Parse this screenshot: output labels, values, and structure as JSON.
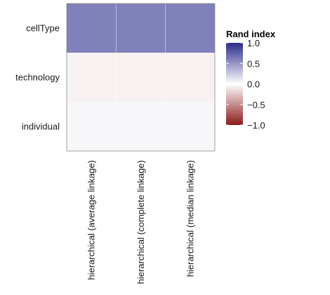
{
  "chart_data": {
    "type": "heatmap",
    "x_categories": [
      "hierarchical (average linkage)",
      "hierarchical (complete linkage)",
      "hierarchical (median linkage)"
    ],
    "y_categories": [
      "cellType",
      "technology",
      "individual"
    ],
    "values": [
      [
        0.6,
        0.6,
        0.6
      ],
      [
        -0.06,
        -0.06,
        -0.06
      ],
      [
        0.04,
        0.04,
        0.04
      ]
    ],
    "title": "",
    "xlabel": "",
    "ylabel": "",
    "legend": {
      "title": "Rand index",
      "range": [
        -1.0,
        1.0
      ],
      "ticks": [
        "1.0",
        "0.5",
        "0.0",
        "−0.5",
        "−1.0"
      ],
      "tick_values": [
        1.0,
        0.5,
        0.0,
        -0.5,
        -1.0
      ],
      "placement": "right"
    },
    "colors": {
      "low": "#8b1a1a",
      "mid": "#ffffff",
      "high": "#2b2b8c"
    },
    "grid": true
  }
}
